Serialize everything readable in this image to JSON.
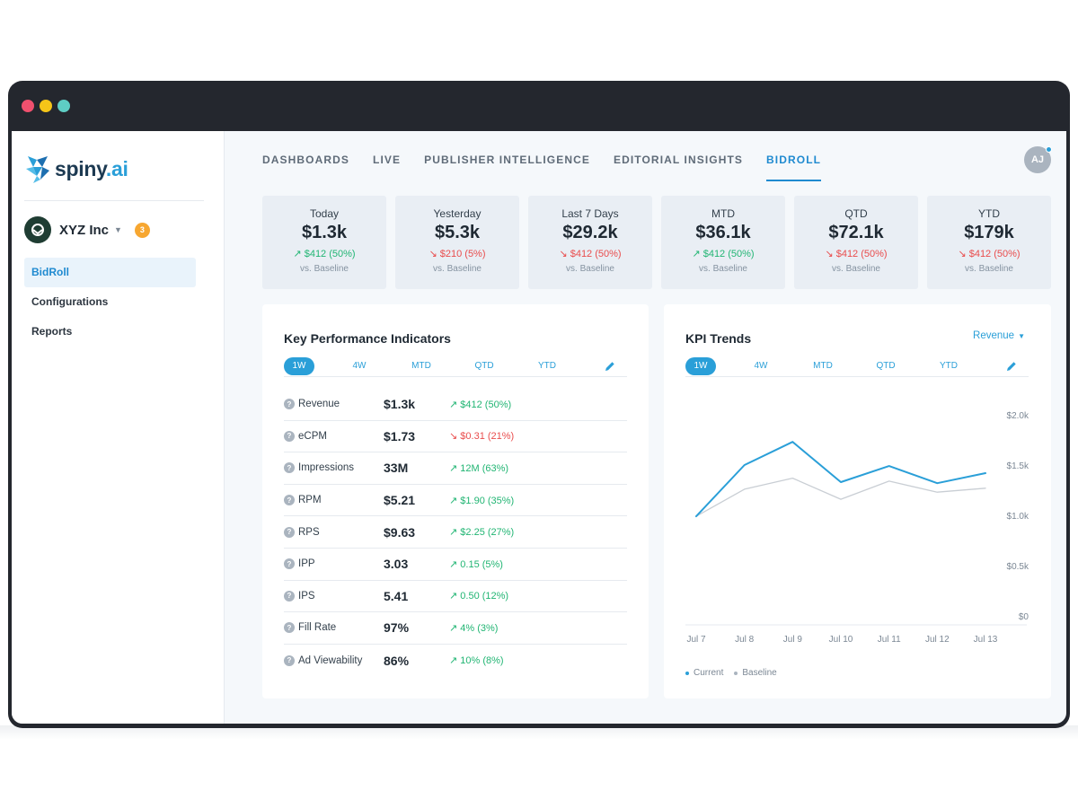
{
  "brand": {
    "name": "spiny",
    "suffix": ".ai",
    "colors": {
      "primary": "#2a9fd8",
      "up": "#21b573",
      "down": "#e94c4c"
    }
  },
  "org": {
    "name": "XYZ Inc",
    "badge": "3"
  },
  "sidebar": {
    "items": [
      {
        "label": "BidRoll",
        "active": true
      },
      {
        "label": "Configurations",
        "active": false
      },
      {
        "label": "Reports",
        "active": false
      }
    ]
  },
  "tabs": [
    {
      "label": "DASHBOARDS",
      "active": false
    },
    {
      "label": "LIVE",
      "active": false
    },
    {
      "label": "PUBLISHER INTELLIGENCE",
      "active": false
    },
    {
      "label": "EDITORIAL INSIGHTS",
      "active": false
    },
    {
      "label": "BIDROLL",
      "active": true
    }
  ],
  "user": {
    "initials": "AJ"
  },
  "stats": [
    {
      "label": "Today",
      "value": "$1.3k",
      "delta": "$412 (50%)",
      "direction": "up",
      "sub": "vs. Baseline"
    },
    {
      "label": "Yesterday",
      "value": "$5.3k",
      "delta": "$210 (5%)",
      "direction": "down",
      "sub": "vs. Baseline"
    },
    {
      "label": "Last 7 Days",
      "value": "$29.2k",
      "delta": "$412 (50%)",
      "direction": "down",
      "sub": "vs. Baseline"
    },
    {
      "label": "MTD",
      "value": "$36.1k",
      "delta": "$412 (50%)",
      "direction": "up",
      "sub": "vs. Baseline"
    },
    {
      "label": "QTD",
      "value": "$72.1k",
      "delta": "$412 (50%)",
      "direction": "down",
      "sub": "vs. Baseline"
    },
    {
      "label": "YTD",
      "value": "$179k",
      "delta": "$412 (50%)",
      "direction": "down",
      "sub": "vs. Baseline"
    }
  ],
  "kpi": {
    "title": "Key Performance Indicators",
    "periods": [
      "1W",
      "4W",
      "MTD",
      "QTD",
      "YTD"
    ],
    "active_period": "1W",
    "rows": [
      {
        "name": "Revenue",
        "value": "$1.3k",
        "delta": "$412 (50%)",
        "direction": "up"
      },
      {
        "name": "eCPM",
        "value": "$1.73",
        "delta": "$0.31 (21%)",
        "direction": "down"
      },
      {
        "name": "Impressions",
        "value": "33M",
        "delta": "12M (63%)",
        "direction": "up"
      },
      {
        "name": "RPM",
        "value": "$5.21",
        "delta": "$1.90 (35%)",
        "direction": "up"
      },
      {
        "name": "RPS",
        "value": "$9.63",
        "delta": "$2.25 (27%)",
        "direction": "up"
      },
      {
        "name": "IPP",
        "value": "3.03",
        "delta": "0.15 (5%)",
        "direction": "up"
      },
      {
        "name": "IPS",
        "value": "5.41",
        "delta": "0.50 (12%)",
        "direction": "up"
      },
      {
        "name": "Fill Rate",
        "value": "97%",
        "delta": "4% (3%)",
        "direction": "up"
      },
      {
        "name": "Ad Viewability",
        "value": "86%",
        "delta": "10% (8%)",
        "direction": "up"
      }
    ]
  },
  "trends": {
    "title": "KPI Trends",
    "metric": "Revenue",
    "periods": [
      "1W",
      "4W",
      "MTD",
      "QTD",
      "YTD"
    ],
    "active_period": "1W"
  },
  "chart_data": {
    "type": "line",
    "title": "",
    "categories": [
      "Jul 7",
      "Jul 8",
      "Jul 9",
      "Jul 10",
      "Jul 11",
      "Jul 12",
      "Jul 13"
    ],
    "series": [
      {
        "name": "Current",
        "color": "#2a9fd8",
        "values": [
          990,
          1500,
          1730,
          1330,
          1490,
          1320,
          1420
        ]
      },
      {
        "name": "Baseline",
        "color": "#c9ced4",
        "values": [
          990,
          1260,
          1370,
          1160,
          1340,
          1230,
          1270
        ]
      }
    ],
    "yticks": [
      "$2.0k",
      "$1.5k",
      "$1.0k",
      "$0.5k",
      "$0"
    ],
    "ylim": [
      0,
      2000
    ],
    "grid": false,
    "legend": "bottom-left"
  }
}
